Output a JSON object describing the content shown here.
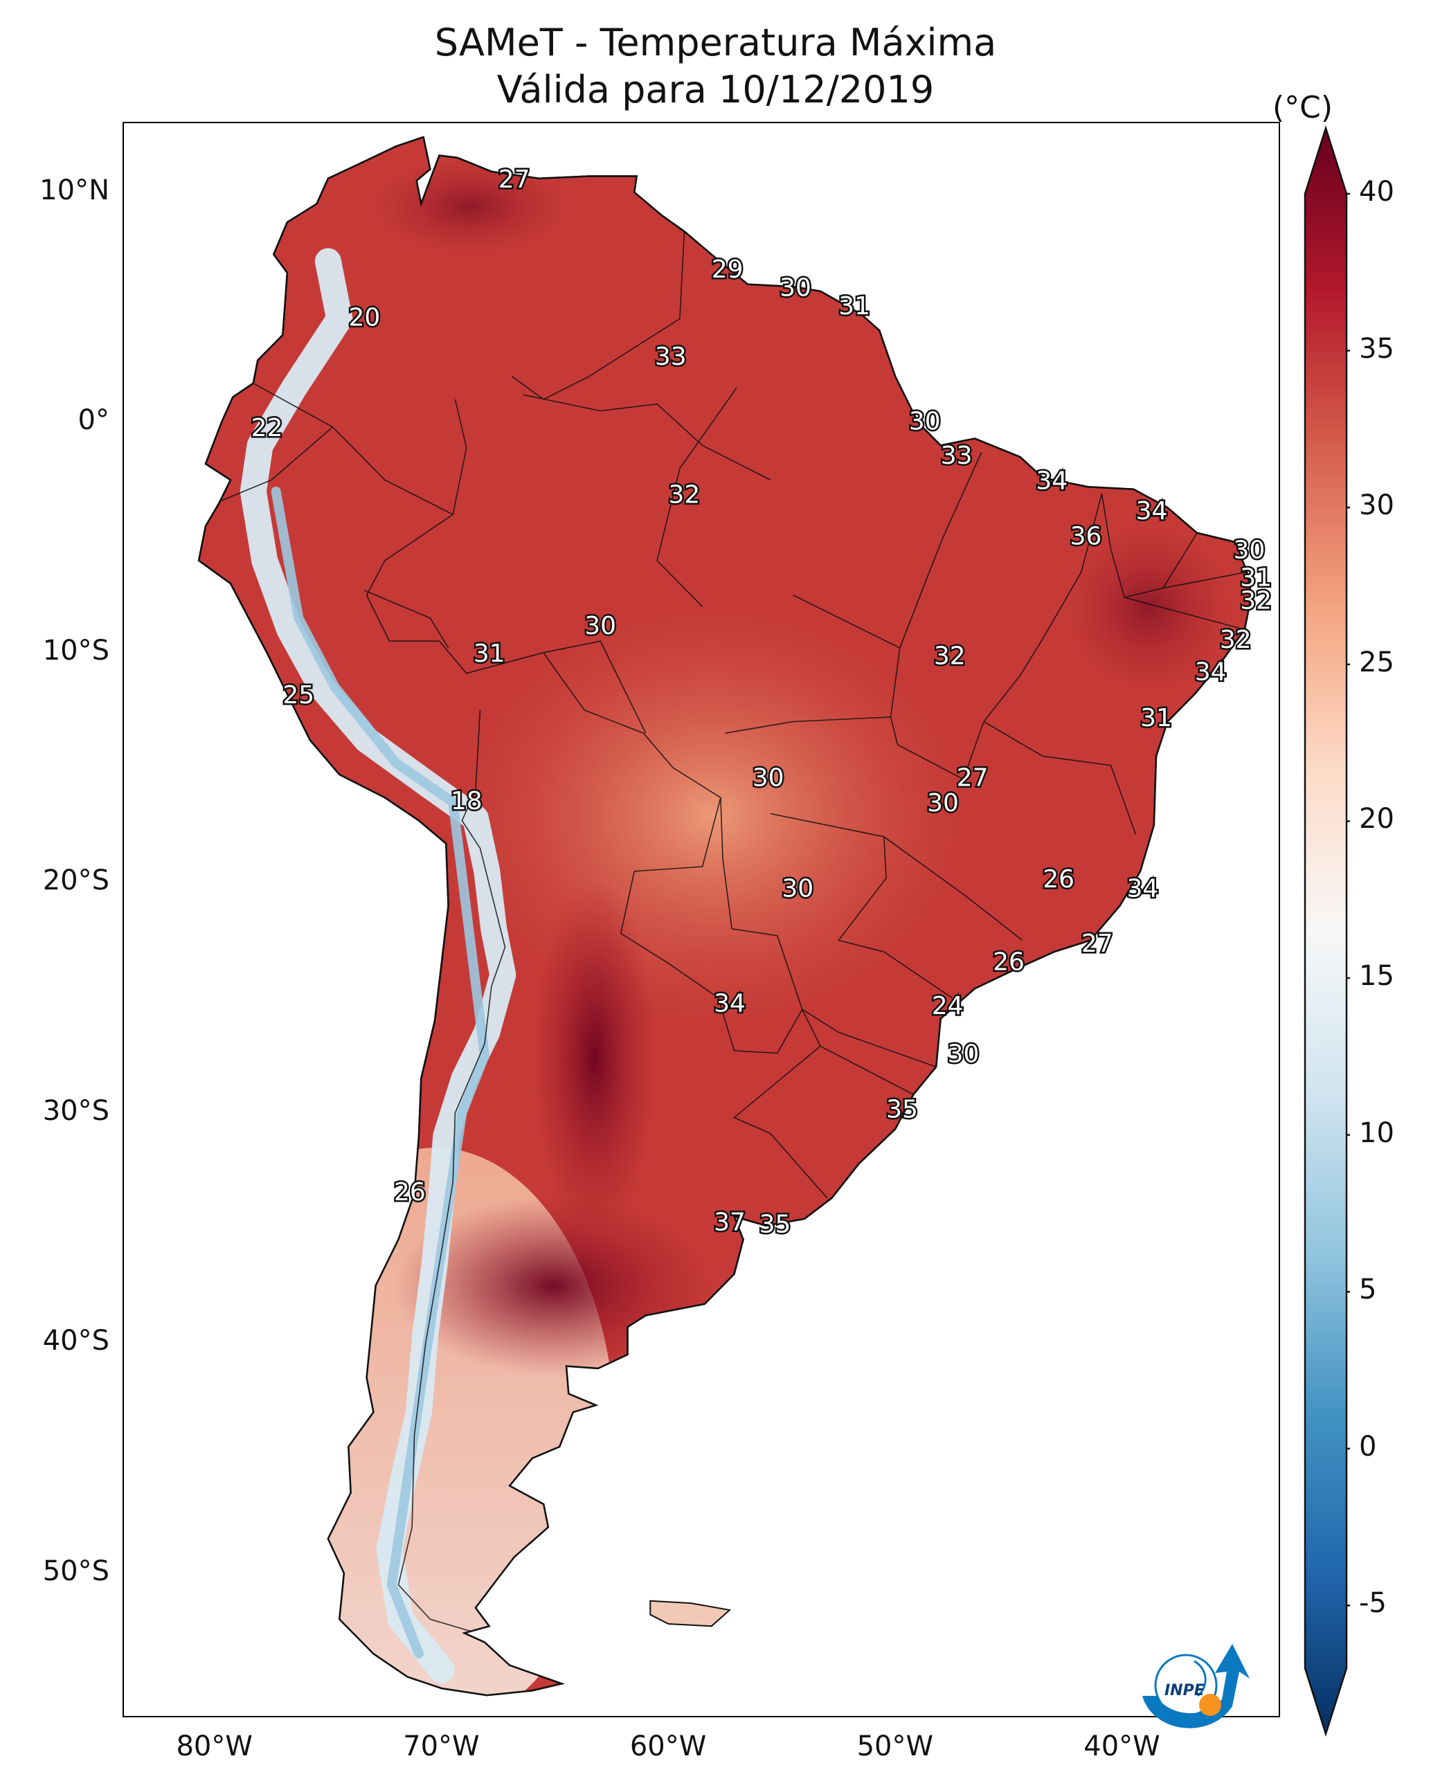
{
  "title_line1": "SAMeT - Temperatura Máxima",
  "title_line2": "Válida para 10/12/2019",
  "lat_labels": [
    "10°N",
    "0°",
    "10°S",
    "20°S",
    "30°S",
    "40°S",
    "50°S"
  ],
  "lon_labels": [
    "80°W",
    "70°W",
    "60°W",
    "50°W",
    "40°W"
  ],
  "colorbar": {
    "unit": "(°C)",
    "ticks": [
      "40",
      "35",
      "30",
      "25",
      "20",
      "15",
      "10",
      "5",
      "0",
      "-5"
    ],
    "min": -7,
    "max": 40,
    "colors": [
      "#053061",
      "#2166ac",
      "#4393c3",
      "#92c5de",
      "#d1e5f0",
      "#f7f7f7",
      "#fddbc7",
      "#f4a582",
      "#d6604d",
      "#b2182b",
      "#67001f"
    ]
  },
  "point_labels": [
    {
      "value": "27",
      "lon": -67.3,
      "lat": 10.5
    },
    {
      "value": "29",
      "lon": -57.9,
      "lat": 6.6
    },
    {
      "value": "30",
      "lon": -54.9,
      "lat": 5.8
    },
    {
      "value": "31",
      "lon": -52.3,
      "lat": 5.0
    },
    {
      "value": "20",
      "lon": -73.9,
      "lat": 4.5
    },
    {
      "value": "33",
      "lon": -60.4,
      "lat": 2.8
    },
    {
      "value": "22",
      "lon": -78.2,
      "lat": -0.3
    },
    {
      "value": "30",
      "lon": -49.2,
      "lat": 0.0
    },
    {
      "value": "33",
      "lon": -47.8,
      "lat": -1.5
    },
    {
      "value": "34",
      "lon": -43.6,
      "lat": -2.6
    },
    {
      "value": "32",
      "lon": -59.8,
      "lat": -3.2
    },
    {
      "value": "34",
      "lon": -39.2,
      "lat": -3.9
    },
    {
      "value": "36",
      "lon": -42.1,
      "lat": -5.0
    },
    {
      "value": "30",
      "lon": -34.9,
      "lat": -5.6
    },
    {
      "value": "31",
      "lon": -34.6,
      "lat": -6.8
    },
    {
      "value": "32",
      "lon": -34.6,
      "lat": -7.8
    },
    {
      "value": "30",
      "lon": -63.5,
      "lat": -8.9
    },
    {
      "value": "32",
      "lon": -35.5,
      "lat": -9.5
    },
    {
      "value": "31",
      "lon": -68.4,
      "lat": -10.1
    },
    {
      "value": "32",
      "lon": -48.1,
      "lat": -10.2
    },
    {
      "value": "34",
      "lon": -36.6,
      "lat": -10.9
    },
    {
      "value": "25",
      "lon": -76.8,
      "lat": -11.9
    },
    {
      "value": "31",
      "lon": -39.0,
      "lat": -12.9
    },
    {
      "value": "30",
      "lon": -56.1,
      "lat": -15.5
    },
    {
      "value": "27",
      "lon": -47.1,
      "lat": -15.5
    },
    {
      "value": "30",
      "lon": -48.4,
      "lat": -16.6
    },
    {
      "value": "18",
      "lon": -69.4,
      "lat": -16.5
    },
    {
      "value": "26",
      "lon": -43.3,
      "lat": -19.9
    },
    {
      "value": "34",
      "lon": -39.6,
      "lat": -20.3
    },
    {
      "value": "30",
      "lon": -54.8,
      "lat": -20.3
    },
    {
      "value": "27",
      "lon": -41.6,
      "lat": -22.7
    },
    {
      "value": "26",
      "lon": -45.5,
      "lat": -23.5
    },
    {
      "value": "24",
      "lon": -48.2,
      "lat": -25.4
    },
    {
      "value": "34",
      "lon": -57.8,
      "lat": -25.3
    },
    {
      "value": "30",
      "lon": -47.5,
      "lat": -27.5
    },
    {
      "value": "35",
      "lon": -50.2,
      "lat": -29.9
    },
    {
      "value": "26",
      "lon": -71.9,
      "lat": -33.5
    },
    {
      "value": "37",
      "lon": -57.8,
      "lat": -34.8
    },
    {
      "value": "35",
      "lon": -55.8,
      "lat": -34.9
    }
  ]
}
